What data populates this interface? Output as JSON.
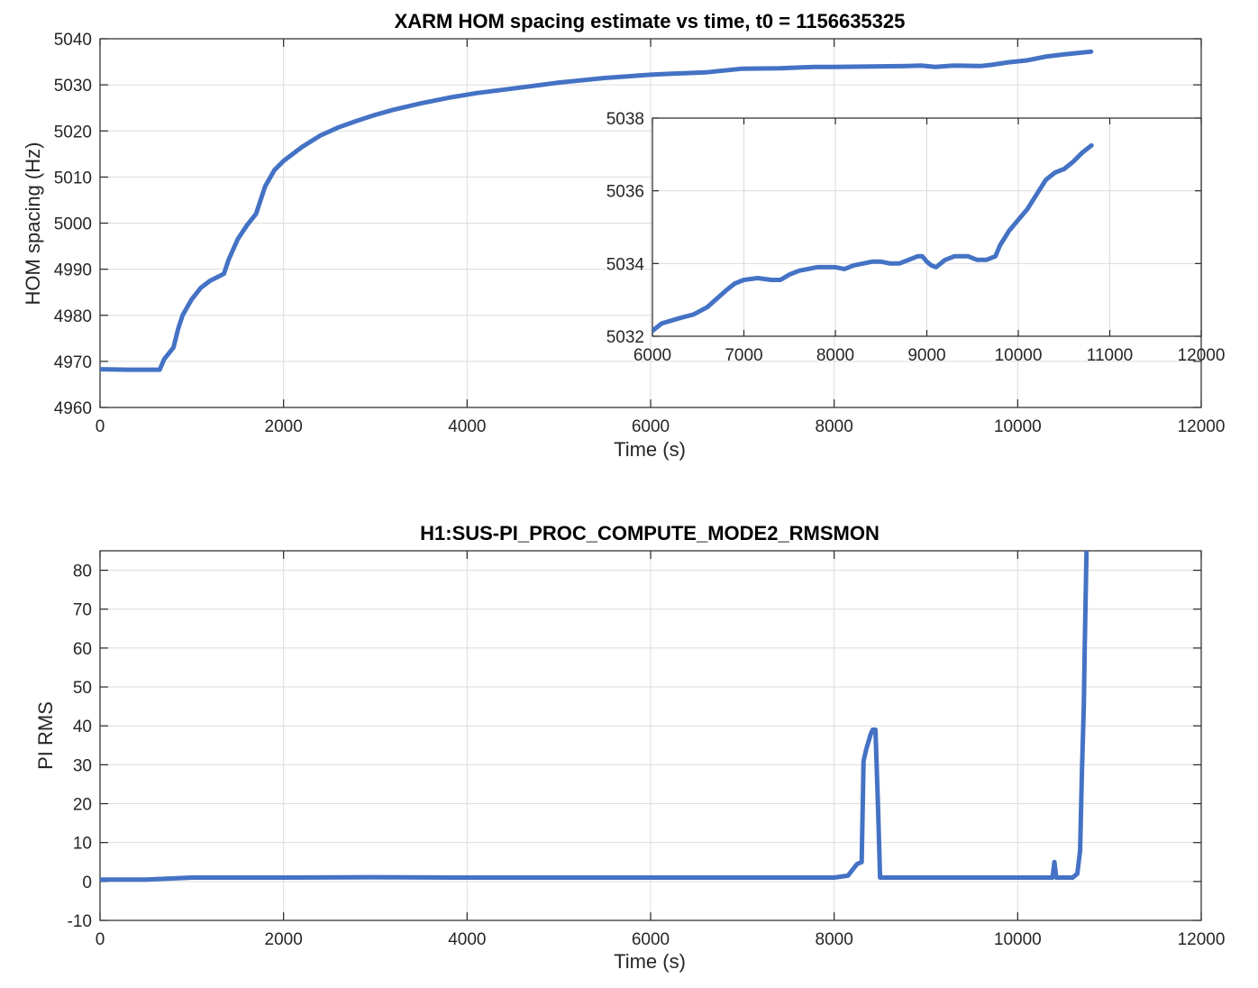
{
  "chart_data": [
    {
      "id": "hom",
      "type": "line",
      "title": "XARM HOM spacing estimate vs time, t0 = 1156635325",
      "xlabel": "Time (s)",
      "ylabel": "HOM spacing (Hz)",
      "xlim": [
        0,
        12000
      ],
      "ylim": [
        4960,
        5040
      ],
      "xticks": [
        0,
        2000,
        4000,
        6000,
        8000,
        10000,
        12000
      ],
      "yticks": [
        4960,
        4970,
        4980,
        4990,
        5000,
        5010,
        5020,
        5030,
        5040
      ],
      "grid": true,
      "color": "#4472C4",
      "series": [
        {
          "x": [
            0,
            300,
            650,
            700,
            800,
            850,
            900,
            1000,
            1100,
            1200,
            1300,
            1350,
            1400,
            1500,
            1600,
            1700,
            1800,
            1900,
            2000,
            2200,
            2400,
            2600,
            2800,
            3000,
            3200,
            3500,
            3800,
            4100,
            4500,
            5000,
            5500,
            6000,
            6200,
            6600,
            7000,
            7400,
            7800,
            8000,
            8400,
            8800,
            8950,
            9100,
            9300,
            9600,
            9700,
            9900,
            10100,
            10300,
            10500,
            10800
          ],
          "y": [
            4968.3,
            4968.2,
            4968.2,
            4970.5,
            4973,
            4977,
            4980,
            4983.5,
            4986,
            4987.5,
            4988.5,
            4989,
            4992,
            4996.5,
            4999.5,
            5002,
            5008,
            5011.5,
            5013.5,
            5016.5,
            5019,
            5020.8,
            5022.2,
            5023.5,
            5024.6,
            5026,
            5027.2,
            5028.2,
            5029.2,
            5030.5,
            5031.5,
            5032.2,
            5032.4,
            5032.7,
            5033.5,
            5033.6,
            5033.9,
            5033.9,
            5034.0,
            5034.1,
            5034.2,
            5033.9,
            5034.2,
            5034.1,
            5034.3,
            5034.9,
            5035.3,
            5036.1,
            5036.6,
            5037.2
          ]
        }
      ]
    },
    {
      "id": "hom-inset",
      "type": "line",
      "title": "",
      "xlabel": "",
      "ylabel": "",
      "xlim": [
        6000,
        12000
      ],
      "ylim": [
        5032,
        5038
      ],
      "xticks": [
        6000,
        7000,
        8000,
        9000,
        10000,
        11000,
        12000
      ],
      "yticks": [
        5032,
        5034,
        5036,
        5038
      ],
      "grid": true,
      "color": "#4472C4",
      "series": [
        {
          "x": [
            6000,
            6100,
            6300,
            6450,
            6600,
            6800,
            6900,
            7000,
            7150,
            7300,
            7400,
            7500,
            7600,
            7700,
            7800,
            8000,
            8100,
            8200,
            8400,
            8500,
            8600,
            8700,
            8800,
            8900,
            8950,
            9000,
            9050,
            9100,
            9200,
            9300,
            9450,
            9550,
            9650,
            9700,
            9750,
            9800,
            9900,
            10000,
            10100,
            10200,
            10300,
            10400,
            10500,
            10600,
            10700,
            10800
          ],
          "y": [
            5032.15,
            5032.35,
            5032.5,
            5032.6,
            5032.8,
            5033.25,
            5033.45,
            5033.55,
            5033.6,
            5033.55,
            5033.55,
            5033.7,
            5033.8,
            5033.85,
            5033.9,
            5033.9,
            5033.85,
            5033.95,
            5034.05,
            5034.05,
            5034.0,
            5034.0,
            5034.1,
            5034.2,
            5034.2,
            5034.05,
            5033.95,
            5033.9,
            5034.1,
            5034.2,
            5034.2,
            5034.1,
            5034.1,
            5034.15,
            5034.2,
            5034.5,
            5034.9,
            5035.2,
            5035.5,
            5035.9,
            5036.3,
            5036.5,
            5036.6,
            5036.8,
            5037.05,
            5037.25
          ]
        }
      ]
    },
    {
      "id": "pirms",
      "type": "line",
      "title": "H1:SUS-PI_PROC_COMPUTE_MODE2_RMSMON",
      "xlabel": "Time (s)",
      "ylabel": "PI RMS",
      "xlim": [
        0,
        12000
      ],
      "ylim": [
        -10,
        85
      ],
      "xticks": [
        0,
        2000,
        4000,
        6000,
        8000,
        10000,
        12000
      ],
      "yticks": [
        -10,
        0,
        10,
        20,
        30,
        40,
        50,
        60,
        70,
        80
      ],
      "grid": true,
      "color": "#4472C4",
      "series": [
        {
          "x": [
            0,
            500,
            1000,
            2000,
            3000,
            4000,
            5000,
            6000,
            7000,
            8000,
            8150,
            8250,
            8300,
            8320,
            8350,
            8400,
            8420,
            8450,
            8480,
            8500,
            8550,
            9000,
            10000,
            10380,
            10400,
            10420,
            10450,
            10500,
            10600,
            10650,
            10680,
            10700,
            10720,
            10730,
            10750
          ],
          "y": [
            0.5,
            0.5,
            1.0,
            1.0,
            1.1,
            1.0,
            1.0,
            1.0,
            1.0,
            1.0,
            1.5,
            4.5,
            5.0,
            31,
            34,
            38,
            39,
            39,
            18,
            1.0,
            1.0,
            1.0,
            1.0,
            1.0,
            5.0,
            1.0,
            1.0,
            1.0,
            1.0,
            2.0,
            8.0,
            28,
            45,
            60,
            85
          ]
        }
      ]
    }
  ]
}
